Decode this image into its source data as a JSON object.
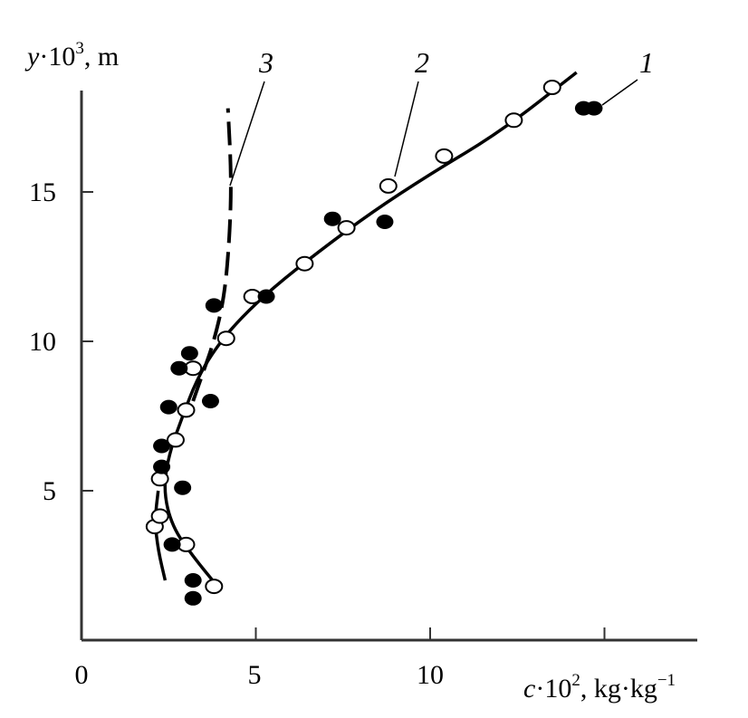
{
  "chart_data": {
    "type": "scatter",
    "title": "",
    "xlabel": {
      "var": "c",
      "mult": "·10",
      "exp": "2",
      "unit": ", kg·kg",
      "unitexp": "−1"
    },
    "ylabel": {
      "var": "y",
      "mult": "·10",
      "exp": "3",
      "unit": ", m"
    },
    "xlim": [
      0,
      17
    ],
    "ylim": [
      0,
      20
    ],
    "xticks": [
      0,
      5,
      10,
      15
    ],
    "xtick_labels": [
      "0",
      "5",
      "10"
    ],
    "yticks": [
      5,
      10,
      15
    ],
    "ytick_labels": [
      "5",
      "10",
      "15"
    ],
    "grid": false,
    "series": [
      {
        "name": "1",
        "marker": "filled-circle",
        "points": [
          [
            3.2,
            1.4
          ],
          [
            3.2,
            2.0
          ],
          [
            2.6,
            3.2
          ],
          [
            2.9,
            5.1
          ],
          [
            2.3,
            5.8
          ],
          [
            2.3,
            6.5
          ],
          [
            2.5,
            7.8
          ],
          [
            3.7,
            8.0
          ],
          [
            2.8,
            9.1
          ],
          [
            3.1,
            9.6
          ],
          [
            3.8,
            11.2
          ],
          [
            5.3,
            11.5
          ],
          [
            7.2,
            14.1
          ],
          [
            8.7,
            14.0
          ],
          [
            14.4,
            17.8
          ],
          [
            14.7,
            17.8
          ]
        ]
      },
      {
        "name": "2",
        "marker": "open-circle",
        "points": [
          [
            3.8,
            1.8
          ],
          [
            3.0,
            3.2
          ],
          [
            2.1,
            3.8
          ],
          [
            2.25,
            4.15
          ],
          [
            2.25,
            5.4
          ],
          [
            2.7,
            6.7
          ],
          [
            3.0,
            7.7
          ],
          [
            3.2,
            9.1
          ],
          [
            4.15,
            10.1
          ],
          [
            4.9,
            11.5
          ],
          [
            6.4,
            12.6
          ],
          [
            7.6,
            13.8
          ],
          [
            8.8,
            15.2
          ],
          [
            10.4,
            16.2
          ],
          [
            12.4,
            17.4
          ],
          [
            13.5,
            18.5
          ]
        ],
        "curve": [
          [
            3.9,
            1.8
          ],
          [
            3.2,
            2.8
          ],
          [
            2.6,
            3.8
          ],
          [
            2.35,
            5.0
          ],
          [
            2.5,
            6.2
          ],
          [
            2.9,
            7.5
          ],
          [
            3.3,
            8.7
          ],
          [
            3.8,
            9.7
          ],
          [
            4.5,
            10.7
          ],
          [
            5.5,
            11.8
          ],
          [
            6.8,
            13.0
          ],
          [
            8.3,
            14.3
          ],
          [
            10,
            15.6
          ],
          [
            12,
            17.0
          ],
          [
            14.2,
            19.0
          ]
        ]
      },
      {
        "name": "3",
        "line": "dashed",
        "curve": [
          [
            3.2,
            8.0
          ],
          [
            3.5,
            9.0
          ],
          [
            3.8,
            10.0
          ],
          [
            4.1,
            11.5
          ],
          [
            4.25,
            13.5
          ],
          [
            4.3,
            15.5
          ],
          [
            4.2,
            17.8
          ]
        ]
      }
    ],
    "extra_curve_lower": [
      [
        2.4,
        2.0
      ],
      [
        2.2,
        3.0
      ],
      [
        2.1,
        4.0
      ],
      [
        2.2,
        5.0
      ]
    ],
    "curve_labels": [
      "1",
      "2",
      "3"
    ]
  }
}
